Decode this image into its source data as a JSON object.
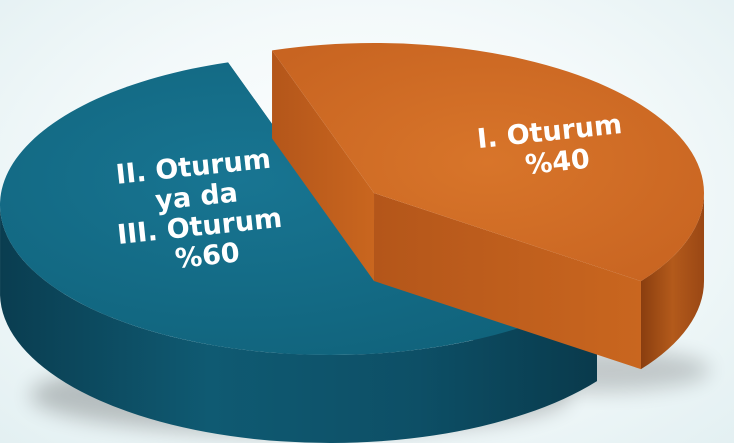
{
  "chart_data": {
    "type": "pie",
    "categories": [
      "I. Oturum",
      "II. Oturum ya da III. Oturum"
    ],
    "values": [
      40,
      60
    ],
    "slices": [
      {
        "label_lines": [
          "I. Oturum",
          "%40"
        ],
        "value": 40,
        "color": "#cd6a23"
      },
      {
        "label_lines": [
          "II. Oturum",
          "ya da",
          "III. Oturum",
          "%60"
        ],
        "value": 60,
        "color": "#126a85"
      }
    ],
    "title": ""
  }
}
